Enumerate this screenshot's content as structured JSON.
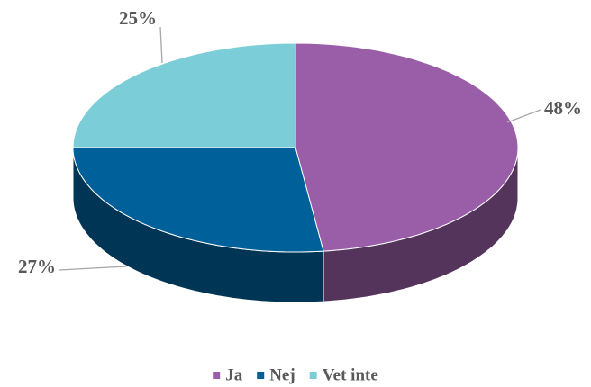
{
  "chart_data": {
    "type": "pie",
    "categories": [
      "Ja",
      "Nej",
      "Vet inte"
    ],
    "values": [
      48,
      27,
      25
    ],
    "value_labels": [
      "48%",
      "27%",
      "25%"
    ],
    "colors": [
      "#9a5ea8",
      "#00609a",
      "#7bcdd8"
    ],
    "legend": "bottom"
  }
}
